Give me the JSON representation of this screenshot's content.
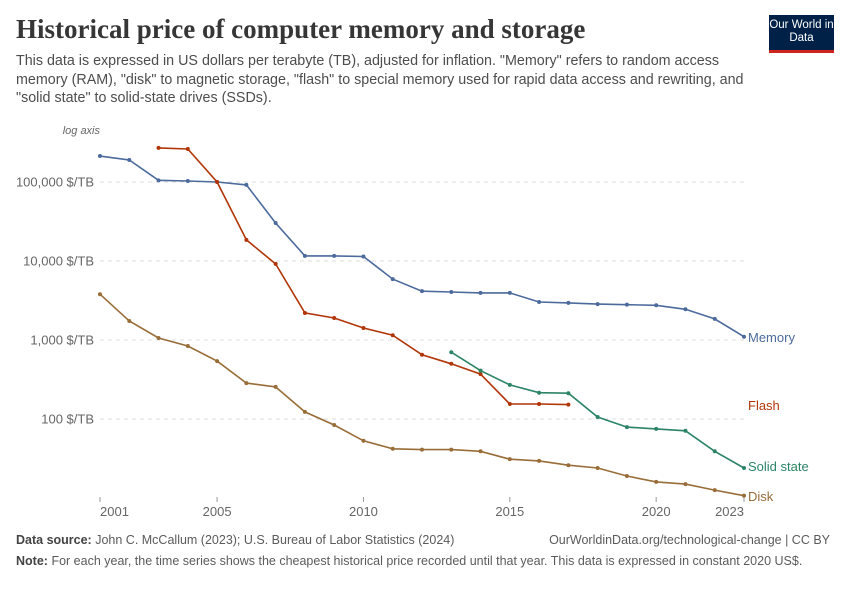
{
  "header": {
    "title": "Historical price of computer memory and storage",
    "subtitle": "This data is expressed in US dollars per terabyte (TB), adjusted for inflation. \"Memory\" refers to random access memory (RAM), \"disk\" to magnetic storage, \"flash\" to special memory used for rapid data access and rewriting, and \"solid state\" to solid-state drives (SSDs).",
    "logo": "Our World in Data"
  },
  "chart_data": {
    "type": "line",
    "yscale": "log",
    "yaxis_note": "log axis",
    "ylim": [
      10,
      270000
    ],
    "xlim": [
      2001,
      2023
    ],
    "grid": "horizontal dashed",
    "legend": "right, labels at line ends",
    "y_ticks": [
      {
        "value": 100000,
        "label": "100,000 $/TB"
      },
      {
        "value": 10000,
        "label": "10,000 $/TB"
      },
      {
        "value": 1000,
        "label": "1,000 $/TB"
      },
      {
        "value": 100,
        "label": "100 $/TB"
      }
    ],
    "x_ticks": [
      {
        "value": 2001,
        "label": "2001"
      },
      {
        "value": 2005,
        "label": "2005"
      },
      {
        "value": 2010,
        "label": "2010"
      },
      {
        "value": 2015,
        "label": "2015"
      },
      {
        "value": 2020,
        "label": "2020"
      },
      {
        "value": 2023,
        "label": "2023"
      }
    ],
    "series": [
      {
        "name": "Memory",
        "color": "#4c6a9c",
        "x": [
          2001,
          2002,
          2003,
          2004,
          2005,
          2006,
          2007,
          2008,
          2009,
          2010,
          2011,
          2012,
          2013,
          2014,
          2015,
          2016,
          2017,
          2018,
          2019,
          2020,
          2021,
          2022,
          2023
        ],
        "values": [
          213000,
          190000,
          105000,
          103000,
          100000,
          92000,
          30300,
          11600,
          11600,
          11400,
          5900,
          4150,
          4050,
          3950,
          3950,
          3030,
          2950,
          2850,
          2800,
          2750,
          2450,
          1850,
          1100
        ]
      },
      {
        "name": "Flash",
        "color": "#b13507",
        "x": [
          2003,
          2004,
          2005,
          2006,
          2007,
          2008,
          2009,
          2010,
          2011,
          2012,
          2013,
          2014,
          2015,
          2016,
          2017
        ],
        "values": [
          270000,
          262000,
          100000,
          18500,
          9200,
          2200,
          1900,
          1420,
          1150,
          650,
          500,
          370,
          155,
          155,
          152
        ]
      },
      {
        "name": "Solid state",
        "color": "#2c8465",
        "x": [
          2013,
          2014,
          2015,
          2016,
          2017,
          2018,
          2019,
          2020,
          2021,
          2022,
          2023
        ],
        "values": [
          700,
          410,
          270,
          215,
          212,
          106,
          79,
          75,
          71,
          39,
          24
        ]
      },
      {
        "name": "Disk",
        "color": "#996d39",
        "x": [
          2001,
          2002,
          2003,
          2004,
          2005,
          2006,
          2007,
          2008,
          2009,
          2010,
          2011,
          2012,
          2013,
          2014,
          2015,
          2016,
          2017,
          2018,
          2019,
          2020,
          2021,
          2022,
          2023
        ],
        "values": [
          3800,
          1740,
          1060,
          840,
          540,
          285,
          255,
          123,
          84,
          53,
          42,
          41,
          41,
          39,
          31,
          29.5,
          26,
          24,
          19,
          16,
          15,
          12.6,
          10.7
        ]
      }
    ]
  },
  "footer": {
    "source_label": "Data source:",
    "source": "John C. McCallum (2023); U.S. Bureau of Labor Statistics (2024)",
    "url": "OurWorldinData.org/technological-change | CC BY",
    "note_label": "Note:",
    "note": "For each year, the time series shows the cheapest historical price recorded until that year. This data is expressed in constant 2020 US$."
  }
}
